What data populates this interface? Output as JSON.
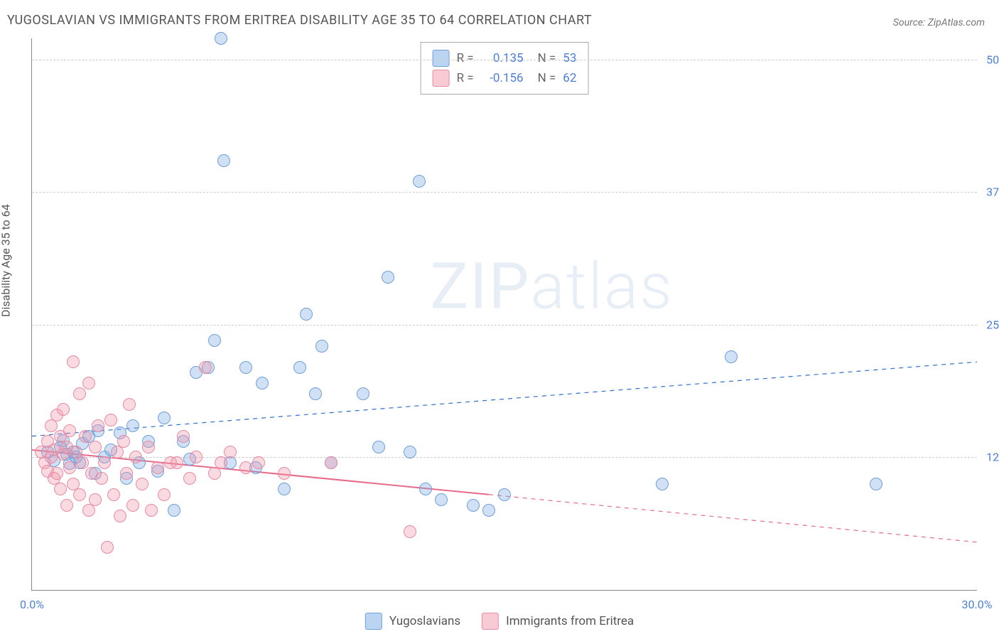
{
  "title": "YUGOSLAVIAN VS IMMIGRANTS FROM ERITREA DISABILITY AGE 35 TO 64 CORRELATION CHART",
  "source": "Source: ZipAtlas.com",
  "ylabel": "Disability Age 35 to 64",
  "watermark_a": "ZIP",
  "watermark_b": "atlas",
  "chart": {
    "type": "scatter-with-regression",
    "xlim": [
      0,
      30
    ],
    "ylim": [
      0,
      52
    ],
    "xticks": [
      0,
      30
    ],
    "xtick_labels": [
      "0.0%",
      "30.0%"
    ],
    "yticks": [
      12.5,
      25.0,
      37.5,
      50.0
    ],
    "ytick_labels": [
      "12.5%",
      "25.0%",
      "37.5%",
      "50.0%"
    ],
    "grid_color": "#cccccc",
    "axis_color": "#888888",
    "background_color": "#ffffff",
    "series": [
      {
        "name": "Yugoslavians",
        "marker_fill": "rgba(120,170,230,0.35)",
        "marker_stroke": "#6f9fd8",
        "line_color": "#2f6fd0",
        "line_width": 2.5,
        "R": "0.135",
        "N": "53",
        "regression": {
          "x1": 0,
          "y1": 14.5,
          "x2": 30,
          "y2": 21.5,
          "extend_from_x": 0
        },
        "points": [
          [
            0.5,
            13
          ],
          [
            0.7,
            12.2
          ],
          [
            0.9,
            13.5
          ],
          [
            1.0,
            14.1
          ],
          [
            1.1,
            12.8
          ],
          [
            1.2,
            11.9
          ],
          [
            1.3,
            13.0
          ],
          [
            1.5,
            12.0
          ],
          [
            1.6,
            13.8
          ],
          [
            1.8,
            14.5
          ],
          [
            2.0,
            11.0
          ],
          [
            2.1,
            15.0
          ],
          [
            2.3,
            12.5
          ],
          [
            2.5,
            13.2
          ],
          [
            2.8,
            14.8
          ],
          [
            3.0,
            10.5
          ],
          [
            3.2,
            15.5
          ],
          [
            3.4,
            12.0
          ],
          [
            3.7,
            14.0
          ],
          [
            4.0,
            11.2
          ],
          [
            4.2,
            16.2
          ],
          [
            4.5,
            7.5
          ],
          [
            4.8,
            14.0
          ],
          [
            5.0,
            12.3
          ],
          [
            5.2,
            20.5
          ],
          [
            5.6,
            21.0
          ],
          [
            5.8,
            23.5
          ],
          [
            6.0,
            52.0
          ],
          [
            6.1,
            40.5
          ],
          [
            6.3,
            12.0
          ],
          [
            6.8,
            21.0
          ],
          [
            7.1,
            11.5
          ],
          [
            7.3,
            19.5
          ],
          [
            8.0,
            9.5
          ],
          [
            8.5,
            21.0
          ],
          [
            8.7,
            26.0
          ],
          [
            9.0,
            18.5
          ],
          [
            9.2,
            23.0
          ],
          [
            9.5,
            12.0
          ],
          [
            10.5,
            18.5
          ],
          [
            11.0,
            13.5
          ],
          [
            11.3,
            29.5
          ],
          [
            12.0,
            13.0
          ],
          [
            12.3,
            38.5
          ],
          [
            12.5,
            9.5
          ],
          [
            14.0,
            8.0
          ],
          [
            14.5,
            7.5
          ],
          [
            20.0,
            10.0
          ],
          [
            22.2,
            22.0
          ],
          [
            26.8,
            10.0
          ],
          [
            15.0,
            9.0
          ],
          [
            13.0,
            8.5
          ],
          [
            1.4,
            12.5
          ]
        ]
      },
      {
        "name": "Immigrants from Eritrea",
        "marker_fill": "rgba(240,150,170,0.35)",
        "marker_stroke": "#e88aa2",
        "line_color": "#e86a8a",
        "line_width": 2,
        "R": "-0.156",
        "N": "62",
        "regression": {
          "x1": 0,
          "y1": 13.2,
          "x2": 30,
          "y2": 4.5,
          "extend_from_x": 14.5
        },
        "points": [
          [
            0.3,
            13.0
          ],
          [
            0.4,
            12.0
          ],
          [
            0.5,
            11.2
          ],
          [
            0.5,
            14.0
          ],
          [
            0.6,
            12.5
          ],
          [
            0.6,
            15.5
          ],
          [
            0.7,
            10.5
          ],
          [
            0.7,
            13.2
          ],
          [
            0.8,
            16.5
          ],
          [
            0.8,
            11.0
          ],
          [
            0.9,
            14.5
          ],
          [
            0.9,
            9.5
          ],
          [
            1.0,
            12.8
          ],
          [
            1.0,
            17.0
          ],
          [
            1.1,
            8.0
          ],
          [
            1.1,
            13.5
          ],
          [
            1.2,
            11.5
          ],
          [
            1.2,
            15.0
          ],
          [
            1.3,
            21.5
          ],
          [
            1.3,
            10.0
          ],
          [
            1.4,
            13.0
          ],
          [
            1.5,
            18.5
          ],
          [
            1.5,
            9.0
          ],
          [
            1.6,
            12.0
          ],
          [
            1.7,
            14.5
          ],
          [
            1.8,
            7.5
          ],
          [
            1.8,
            19.5
          ],
          [
            1.9,
            11.0
          ],
          [
            2.0,
            13.5
          ],
          [
            2.0,
            8.5
          ],
          [
            2.1,
            15.5
          ],
          [
            2.2,
            10.5
          ],
          [
            2.3,
            12.0
          ],
          [
            2.4,
            4.0
          ],
          [
            2.5,
            16.0
          ],
          [
            2.6,
            9.0
          ],
          [
            2.7,
            13.0
          ],
          [
            2.8,
            7.0
          ],
          [
            2.9,
            14.0
          ],
          [
            3.0,
            11.0
          ],
          [
            3.1,
            17.5
          ],
          [
            3.2,
            8.0
          ],
          [
            3.3,
            12.5
          ],
          [
            3.5,
            10.0
          ],
          [
            3.7,
            13.5
          ],
          [
            3.8,
            7.5
          ],
          [
            4.0,
            11.5
          ],
          [
            4.2,
            9.0
          ],
          [
            4.4,
            12.0
          ],
          [
            4.6,
            12.0
          ],
          [
            4.8,
            14.5
          ],
          [
            5.0,
            10.5
          ],
          [
            5.2,
            12.5
          ],
          [
            5.5,
            21.0
          ],
          [
            5.8,
            11.0
          ],
          [
            6.0,
            12.0
          ],
          [
            6.3,
            13.0
          ],
          [
            6.8,
            11.5
          ],
          [
            7.2,
            12.0
          ],
          [
            8.0,
            11.0
          ],
          [
            9.5,
            12.0
          ],
          [
            12.0,
            5.5
          ]
        ]
      }
    ]
  },
  "legend": {
    "r_label": "R =",
    "n_label": "N ="
  },
  "bottom_legend": [
    "Yugoslavians",
    "Immigrants from Eritrea"
  ]
}
